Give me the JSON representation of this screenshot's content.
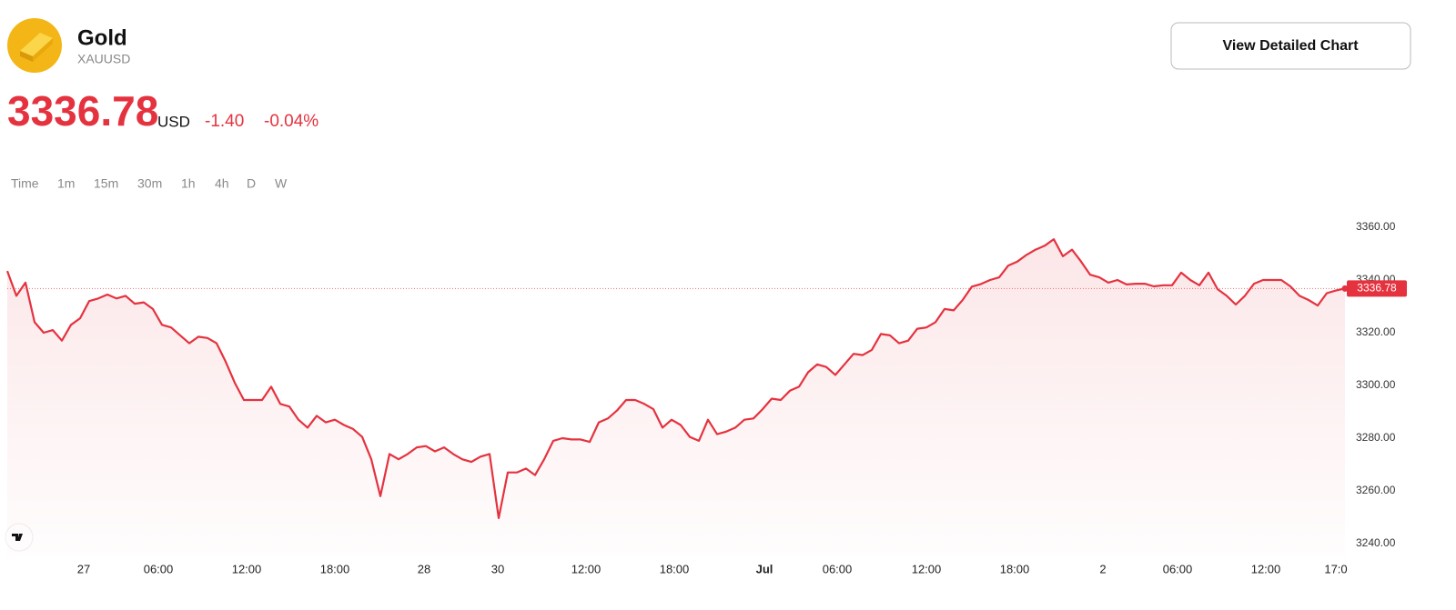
{
  "header": {
    "title": "Gold",
    "symbol": "XAUUSD",
    "price": "3336.78",
    "currency": "USD",
    "change": "-1.40",
    "change_percent": "-0.04%",
    "button": "View Detailed Chart",
    "timeframes": [
      "Time",
      "1m",
      "15m",
      "30m",
      "1h",
      "4h",
      "D",
      "W"
    ]
  },
  "chart_data": {
    "type": "line",
    "color": "#e5323f",
    "values": [
      3343.4,
      3334,
      3339,
      3324,
      3320,
      3321,
      3317,
      3323,
      3325.5,
      3332,
      3333,
      3334.5,
      3333,
      3334,
      3331,
      3331.5,
      3329,
      3323,
      3322,
      3319,
      3316,
      3318.5,
      3318,
      3316,
      3309,
      3301,
      3294.5,
      3294.5,
      3294.5,
      3299.5,
      3293,
      3292,
      3287,
      3284,
      3288.5,
      3286,
      3287,
      3285,
      3283.5,
      3280.5,
      3272,
      3258,
      3274,
      3272,
      3274,
      3276.5,
      3277,
      3275,
      3276.5,
      3274,
      3272,
      3271,
      3273,
      3274,
      3249.7,
      3267,
      3267,
      3268.5,
      3266,
      3272,
      3279,
      3280,
      3279.5,
      3279.5,
      3278.6,
      3286,
      3287.5,
      3290.5,
      3294.5,
      3294.5,
      3293,
      3291,
      3284,
      3287,
      3285,
      3280.5,
      3279,
      3287,
      3281.5,
      3282.5,
      3284,
      3287,
      3287.5,
      3291,
      3295,
      3294.5,
      3298,
      3299.5,
      3305,
      3308,
      3307,
      3304,
      3308,
      3312,
      3311.5,
      3313.5,
      3319.5,
      3319,
      3316,
      3317,
      3321.5,
      3322,
      3324,
      3329,
      3328.5,
      3332.5,
      3337.5,
      3338.5,
      3340,
      3341,
      3345.5,
      3347,
      3349.5,
      3351.5,
      3353,
      3355.5,
      3349,
      3351.5,
      3347,
      3342,
      3341,
      3339,
      3340,
      3338.3,
      3338.6,
      3338.6,
      3337.6,
      3338,
      3338,
      3342.8,
      3340,
      3338,
      3342.8,
      3336.5,
      3334,
      3330.7,
      3334,
      3338.6,
      3340,
      3340,
      3340,
      3337.6,
      3334,
      3332.4,
      3330.3,
      3335,
      3336,
      3336.78
    ],
    "xlim": [
      0,
      147
    ],
    "xticks": [
      {
        "value": 8.4,
        "label": "27"
      },
      {
        "value": 16.6,
        "label": "06:00"
      },
      {
        "value": 26.3,
        "label": "12:00"
      },
      {
        "value": 36.0,
        "label": "18:00"
      },
      {
        "value": 45.8,
        "label": "28"
      },
      {
        "value": 53.9,
        "label": "30"
      },
      {
        "value": 63.6,
        "label": "12:00"
      },
      {
        "value": 73.3,
        "label": "18:00"
      },
      {
        "value": 83.2,
        "label": "Jul"
      },
      {
        "value": 91.2,
        "label": "06:00"
      },
      {
        "value": 101.0,
        "label": "12:00"
      },
      {
        "value": 110.7,
        "label": "18:00"
      },
      {
        "value": 120.4,
        "label": "2"
      },
      {
        "value": 128.6,
        "label": "06:00"
      },
      {
        "value": 138.3,
        "label": "12:00"
      },
      {
        "value": 146.0,
        "label": "17:0"
      }
    ],
    "ylim": [
      3235,
      3365
    ],
    "yticks": [
      {
        "value": 3240,
        "label": "3240.00"
      },
      {
        "value": 3260,
        "label": "3260.00"
      },
      {
        "value": 3280,
        "label": "3280.00"
      },
      {
        "value": 3300,
        "label": "3300.00"
      },
      {
        "value": 3320,
        "label": "3320.00"
      },
      {
        "value": 3340,
        "label": "3340.00"
      },
      {
        "value": 3360,
        "label": "3360.00"
      }
    ]
  }
}
